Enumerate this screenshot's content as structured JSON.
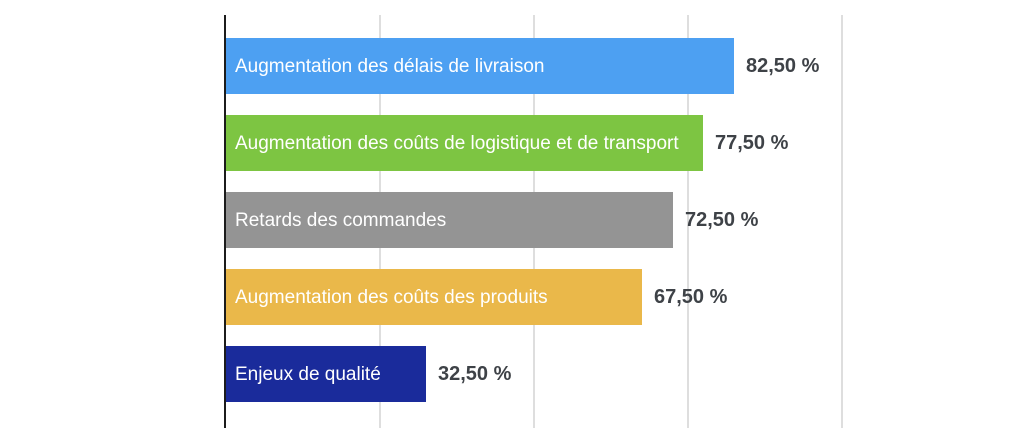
{
  "chart_data": {
    "type": "bar",
    "orientation": "horizontal",
    "title": "",
    "categories": [
      "Augmentation des délais de livraison",
      "Augmentation des coûts de logistique et de transport",
      "Retards des commandes",
      "Augmentation des coûts des produits",
      "Enjeux de qualité"
    ],
    "values": [
      82.5,
      77.5,
      72.5,
      67.5,
      32.5
    ],
    "value_labels": [
      "82,50 %",
      "77,50 %",
      "72,50 %",
      "67,50 %",
      "32,50 %"
    ],
    "bar_colors": [
      "#4DA0F2",
      "#7DC542",
      "#949494",
      "#EAB84A",
      "#1A2B9B"
    ],
    "xlabel": "",
    "ylabel": "",
    "xlim": [
      0,
      100
    ],
    "gridline_values": [
      25,
      50,
      75,
      100
    ],
    "grid": true,
    "legend": false,
    "label_text_color": "#FFFFFF",
    "value_text_color": "#3E4247",
    "axis_color": "#1C1C1C",
    "gridline_color": "#DEDEDE",
    "background_color": "#FFFFFF"
  }
}
